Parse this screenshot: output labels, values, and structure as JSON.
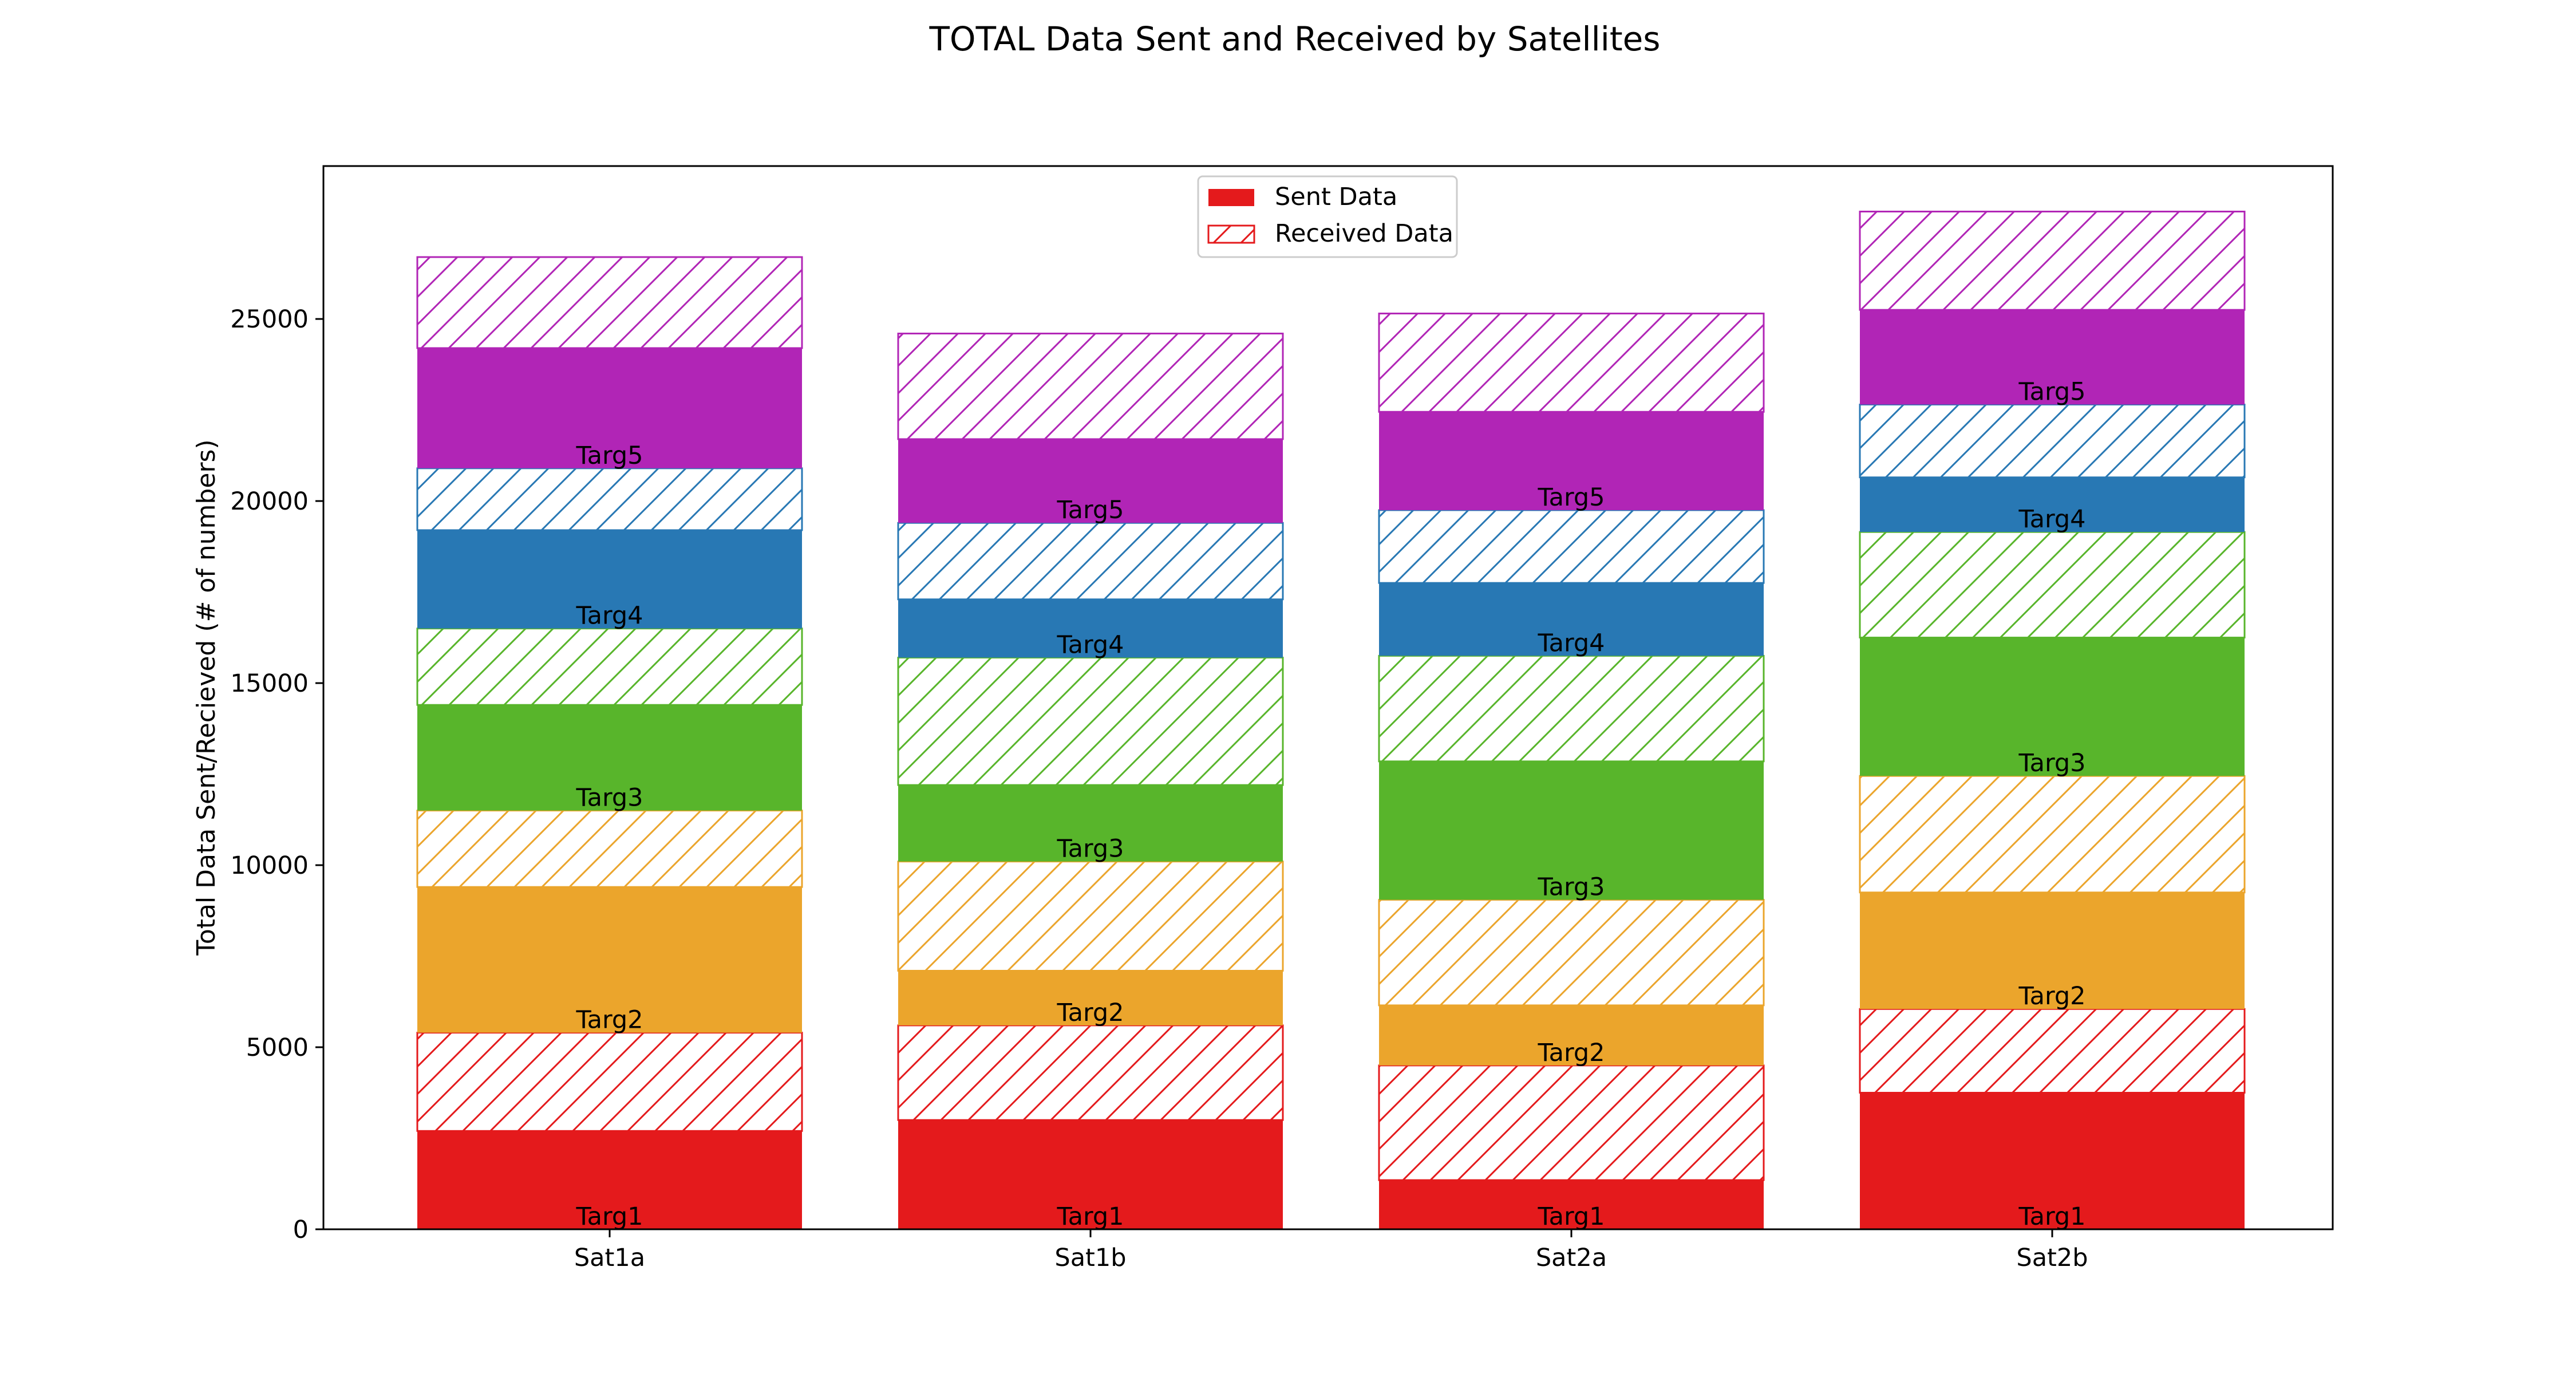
{
  "chart_data": {
    "type": "bar",
    "stacked": true,
    "title": "TOTAL Data Sent and Received by Satellites",
    "xlabel": "",
    "ylabel": "Total Data Sent/Recieved (# of numbers)",
    "categories": [
      "Sat1a",
      "Sat1b",
      "Sat2a",
      "Sat2b"
    ],
    "ylim": [
      0,
      29200
    ],
    "yticks": [
      0,
      5000,
      10000,
      15000,
      20000,
      25000
    ],
    "grid": false,
    "legend": {
      "placement": "top-center",
      "entries": [
        {
          "label": "Sent Data",
          "style": "solid"
        },
        {
          "label": "Received Data",
          "style": "hatched"
        }
      ]
    },
    "targets": [
      {
        "name": "Targ1",
        "color": "#e41a1c"
      },
      {
        "name": "Targ2",
        "color": "#eba52c"
      },
      {
        "name": "Targ3",
        "color": "#58b52b"
      },
      {
        "name": "Targ4",
        "color": "#2878b4"
      },
      {
        "name": "Targ5",
        "color": "#b125b6"
      }
    ],
    "sent": [
      [
        2700,
        4000,
        2900,
        2700,
        3300
      ],
      [
        3000,
        1500,
        2100,
        1600,
        2300
      ],
      [
        1350,
        1650,
        3800,
        2000,
        2700
      ],
      [
        3750,
        3200,
        3800,
        1500,
        2600
      ]
    ],
    "received": [
      [
        2700,
        2100,
        2100,
        1700,
        2500
      ],
      [
        2600,
        3000,
        3500,
        2100,
        2900
      ],
      [
        3150,
        2900,
        2900,
        2000,
        2700
      ],
      [
        2300,
        3200,
        2900,
        2000,
        2700
      ]
    ]
  }
}
